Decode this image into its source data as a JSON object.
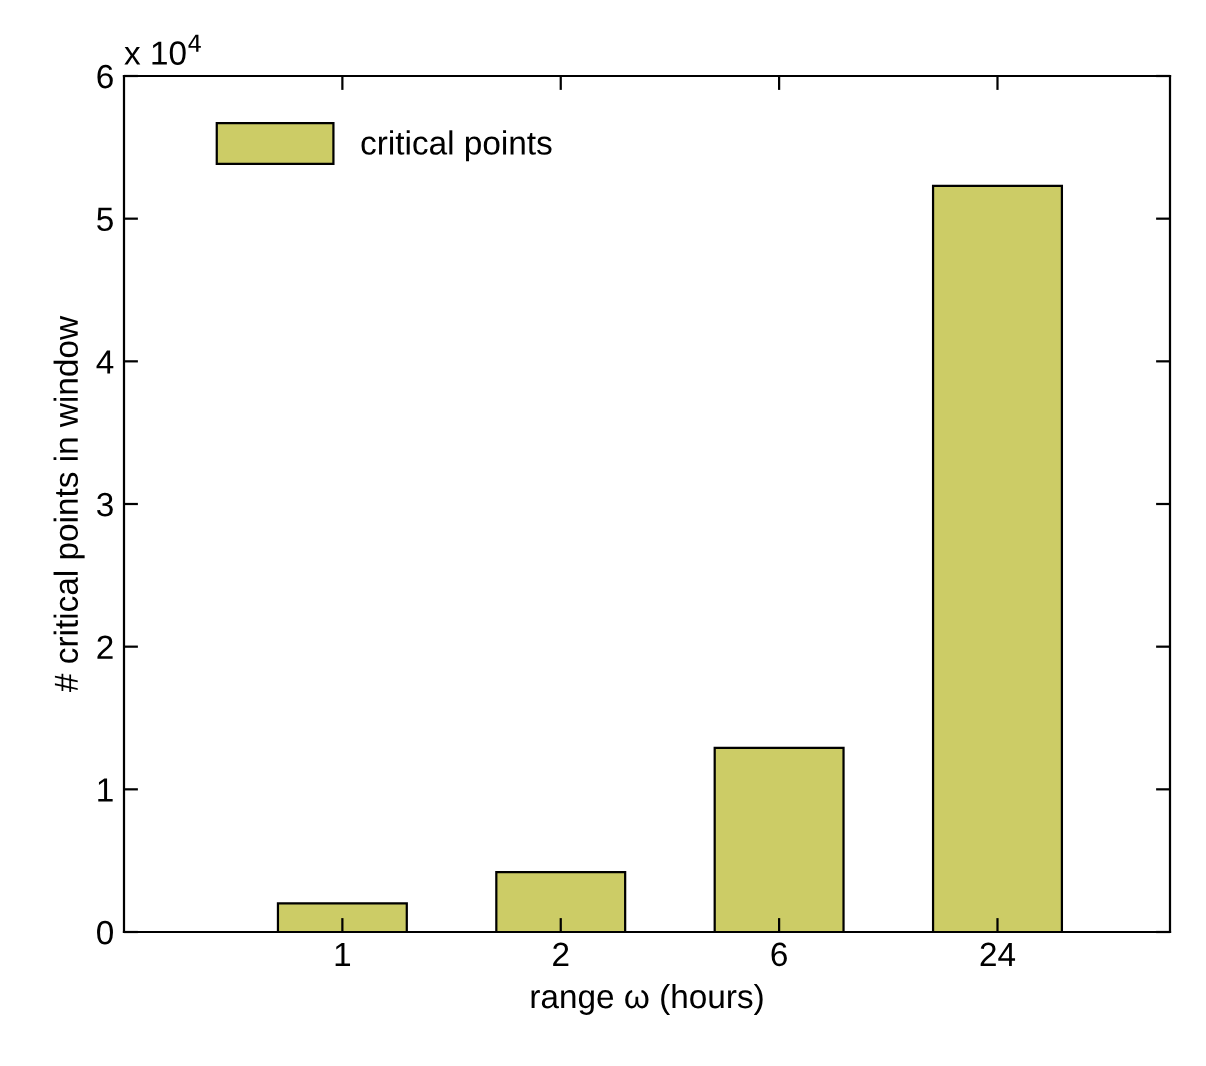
{
  "chart_data": {
    "type": "bar",
    "xlabel": "range ω (hours)",
    "ylabel": "# critical points in window",
    "categories": [
      "1",
      "2",
      "6",
      "24"
    ],
    "series": [
      {
        "name": "critical points",
        "color": "#cccc66",
        "values": [
          0.2,
          0.42,
          1.29,
          5.23
        ]
      }
    ],
    "ylim": [
      0,
      6
    ],
    "yticks": [
      0,
      1,
      2,
      3,
      4,
      5,
      6
    ],
    "annotations": [
      "x 10$^{4}$"
    ],
    "legend": "top left",
    "grid": false
  }
}
